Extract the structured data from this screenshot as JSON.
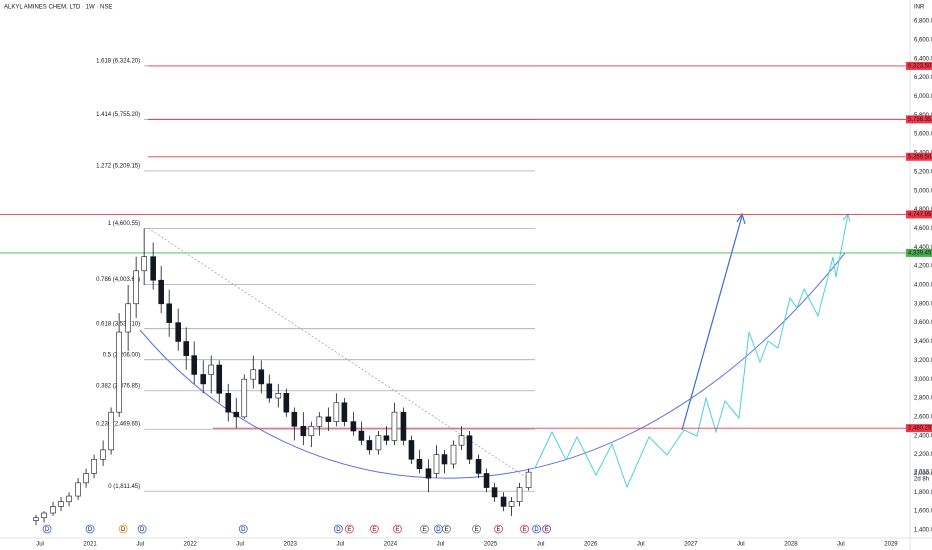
{
  "header": {
    "title": "ALKYL AMINES CHEM, LTD · 1W · NSE",
    "currency": "INR"
  },
  "chart_data": {
    "type": "candlestick",
    "x": [
      2020.46,
      2020.54,
      2020.63,
      2020.71,
      2020.79,
      2020.88,
      2020.96,
      2021.04,
      2021.13,
      2021.21,
      2021.29,
      2021.38,
      2021.46,
      2021.54,
      2021.63,
      2021.71,
      2021.79,
      2021.88,
      2021.96,
      2022.04,
      2022.13,
      2022.21,
      2022.29,
      2022.38,
      2022.46,
      2022.54,
      2022.63,
      2022.71,
      2022.79,
      2022.88,
      2022.96,
      2023.04,
      2023.13,
      2023.21,
      2023.29,
      2023.38,
      2023.46,
      2023.54,
      2023.63,
      2023.71,
      2023.79,
      2023.88,
      2023.96,
      2024.04,
      2024.13,
      2024.21,
      2024.29,
      2024.38,
      2024.46,
      2024.54,
      2024.63,
      2024.71,
      2024.79,
      2024.88,
      2024.96,
      2025.04,
      2025.13,
      2025.21,
      2025.29,
      2025.38
    ],
    "open": [
      1500,
      1530,
      1580,
      1650,
      1700,
      1760,
      1900,
      2000,
      2150,
      2250,
      2650,
      3500,
      3800,
      4150,
      4300,
      4050,
      3800,
      3600,
      3400,
      3250,
      3050,
      3050,
      3150,
      2850,
      2650,
      2600,
      3000,
      3100,
      2950,
      2800,
      2850,
      2650,
      2500,
      2400,
      2500,
      2600,
      2550,
      2750,
      2550,
      2450,
      2350,
      2250,
      2400,
      2350,
      2650,
      2350,
      2150,
      2050,
      2000,
      2200,
      2100,
      2300,
      2400,
      2150,
      2000,
      1850,
      1750,
      1650,
      1700,
      1850
    ],
    "high": [
      1560,
      1600,
      1700,
      1750,
      1800,
      1950,
      2050,
      2200,
      2350,
      2700,
      3700,
      4000,
      4300,
      4600,
      4450,
      4200,
      3950,
      3750,
      3550,
      3400,
      3200,
      3250,
      3200,
      2950,
      2800,
      3050,
      3250,
      3200,
      3050,
      2950,
      2900,
      2700,
      2650,
      2550,
      2650,
      2700,
      2850,
      2800,
      2650,
      2550,
      2400,
      2450,
      2500,
      2750,
      2700,
      2400,
      2250,
      2150,
      2300,
      2250,
      2350,
      2500,
      2450,
      2200,
      2050,
      1900,
      1800,
      1750,
      1900,
      2050
    ],
    "low": [
      1450,
      1480,
      1550,
      1600,
      1650,
      1720,
      1850,
      1950,
      2080,
      2200,
      2600,
      3300,
      3650,
      4000,
      3950,
      3700,
      3450,
      3300,
      3100,
      2950,
      2850,
      2850,
      2750,
      2550,
      2480,
      2580,
      2900,
      2850,
      2750,
      2700,
      2600,
      2350,
      2300,
      2280,
      2400,
      2450,
      2500,
      2500,
      2400,
      2300,
      2200,
      2200,
      2300,
      2300,
      2300,
      2100,
      2000,
      1800,
      1950,
      2000,
      2050,
      2250,
      2100,
      1950,
      1800,
      1700,
      1600,
      1550,
      1650,
      1820
    ],
    "close": [
      1530,
      1580,
      1650,
      1700,
      1760,
      1900,
      2000,
      2150,
      2250,
      2650,
      3500,
      3800,
      4150,
      4300,
      4050,
      3800,
      3600,
      3400,
      3250,
      3050,
      2950,
      3150,
      2850,
      2650,
      2600,
      3000,
      3100,
      2950,
      2800,
      2850,
      2650,
      2500,
      2400,
      2500,
      2600,
      2550,
      2750,
      2550,
      2450,
      2350,
      2250,
      2400,
      2350,
      2650,
      2350,
      2150,
      2050,
      1950,
      2200,
      2100,
      2300,
      2400,
      2150,
      2000,
      1850,
      1750,
      1650,
      1700,
      1850,
      2013.7
    ],
    "up_color": "#ffffff",
    "down_color": "#131722",
    "xlim": [
      2020.1,
      2029.19
    ],
    "ylim": [
      1315,
      7023
    ],
    "xticks": [
      {
        "value": 2020.5,
        "label": "Jul"
      },
      {
        "value": 2021,
        "label": "2021"
      },
      {
        "value": 2021.5,
        "label": "Jul"
      },
      {
        "value": 2022,
        "label": "2022"
      },
      {
        "value": 2022.5,
        "label": "Jul"
      },
      {
        "value": 2023,
        "label": "2023"
      },
      {
        "value": 2023.5,
        "label": "Jul"
      },
      {
        "value": 2024,
        "label": "2024"
      },
      {
        "value": 2024.5,
        "label": "Jul"
      },
      {
        "value": 2025,
        "label": "2025"
      },
      {
        "value": 2025.5,
        "label": "Jul"
      },
      {
        "value": 2026,
        "label": "2026"
      },
      {
        "value": 2026.5,
        "label": "Jul"
      },
      {
        "value": 2027,
        "label": "2027"
      },
      {
        "value": 2027.5,
        "label": "Jul"
      },
      {
        "value": 2028,
        "label": "2028"
      },
      {
        "value": 2028.5,
        "label": "Jul"
      },
      {
        "value": 2029,
        "label": "2029"
      }
    ],
    "yticks": [
      {
        "value": 1400,
        "label": "1,400.00"
      },
      {
        "value": 1600,
        "label": "1,600.00"
      },
      {
        "value": 1800,
        "label": "1,800.00"
      },
      {
        "value": 2000,
        "label": "2,000.00"
      },
      {
        "value": 2200,
        "label": "2,200.00"
      },
      {
        "value": 2400,
        "label": "2,400.00"
      },
      {
        "value": 2600,
        "label": "2,600.00"
      },
      {
        "value": 2800,
        "label": "2,800.00"
      },
      {
        "value": 3000,
        "label": "3,000.00"
      },
      {
        "value": 3200,
        "label": "3,200.00"
      },
      {
        "value": 3400,
        "label": "3,400.00"
      },
      {
        "value": 3600,
        "label": "3,600.00"
      },
      {
        "value": 3800,
        "label": "3,800.00"
      },
      {
        "value": 4000,
        "label": "4,000.00"
      },
      {
        "value": 4200,
        "label": "4,200.00"
      },
      {
        "value": 4400,
        "label": "4,400.00"
      },
      {
        "value": 4600,
        "label": "4,600.00"
      },
      {
        "value": 4800,
        "label": "4,800.00"
      },
      {
        "value": 5000,
        "label": "5,000.00"
      },
      {
        "value": 5200,
        "label": "5,200.00"
      },
      {
        "value": 5400,
        "label": "5,400.00"
      },
      {
        "value": 5600,
        "label": "5,600.00"
      },
      {
        "value": 5800,
        "label": "5,800.00"
      },
      {
        "value": 6000,
        "label": "6,000.00"
      },
      {
        "value": 6200,
        "label": "6,200.00"
      },
      {
        "value": 6400,
        "label": "6,400.00"
      },
      {
        "value": 6600,
        "label": "6,600.00"
      },
      {
        "value": 6800,
        "label": "6,800.00"
      }
    ],
    "fib_levels": [
      {
        "label": "1.618 (6,324.20)",
        "value": 6324.2,
        "color": "#131722"
      },
      {
        "label": "1.414 (5,755.20)",
        "value": 5755.2,
        "color": "#f23645"
      },
      {
        "label": "1.272 (5,209.15)",
        "value": 5209.15,
        "color": "#4caf50"
      },
      {
        "label": "1 (4,600.55)",
        "value": 4600.55,
        "color": "#131722"
      },
      {
        "label": "0.786 (4,003.65)",
        "value": 4003.65,
        "color": "#131722"
      },
      {
        "label": "0.618 (3,535.10)",
        "value": 3535.1,
        "color": "#131722"
      },
      {
        "label": "0.5 (3,206.00)",
        "value": 3206,
        "color": "#131722"
      },
      {
        "label": "0.382 (2,876.85)",
        "value": 2876.85,
        "color": "#131722"
      },
      {
        "label": "0.236 (2,469.65)",
        "value": 2469.65,
        "color": "#131722"
      },
      {
        "label": "0 (1,811.45)",
        "value": 1811.45,
        "color": "#131722"
      }
    ],
    "price_lines": [
      {
        "value": 6323.5,
        "label": "6,323.50",
        "color": "#f23645"
      },
      {
        "value": 5756.35,
        "label": "5,756.35",
        "color": "#f23645"
      },
      {
        "value": 5359.5,
        "label": "5,359.50",
        "color": "#f23645"
      },
      {
        "value": 4747.95,
        "label": "4,747.95",
        "color": "#f23645"
      },
      {
        "value": 4339.45,
        "label": "4,339.45",
        "color": "#4caf50"
      },
      {
        "value": 2480.25,
        "label": "2,480.25",
        "color": "#f23645"
      }
    ],
    "last_price": {
      "value": 2013.7,
      "label": "2,013.70",
      "countdown": "2d 8h"
    },
    "events": [
      {
        "label": "D",
        "x": 2020.57,
        "color": "#2962ff"
      },
      {
        "label": "D",
        "x": 2021.0,
        "color": "#2962ff"
      },
      {
        "label": "D",
        "x": 2021.33,
        "color": "#ff9800"
      },
      {
        "label": "D",
        "x": 2021.52,
        "color": "#2962ff"
      },
      {
        "label": "D",
        "x": 2022.53,
        "color": "#2962ff"
      },
      {
        "label": "D",
        "x": 2023.48,
        "color": "#2962ff"
      },
      {
        "label": "E",
        "x": 2023.59,
        "color": "#f23645"
      },
      {
        "label": "E",
        "x": 2023.84,
        "color": "#f23645"
      },
      {
        "label": "E",
        "x": 2024.07,
        "color": "#f23645"
      },
      {
        "label": "E",
        "x": 2024.34,
        "color": "#787b86"
      },
      {
        "label": "D",
        "x": 2024.48,
        "color": "#2962ff"
      },
      {
        "label": "E",
        "x": 2024.56,
        "color": "#787b86"
      },
      {
        "label": "E",
        "x": 2024.86,
        "color": "#787b86"
      },
      {
        "label": "E",
        "x": 2025.08,
        "color": "#f23645"
      },
      {
        "label": "E",
        "x": 2025.34,
        "color": "#f23645"
      },
      {
        "label": "D",
        "x": 2025.46,
        "color": "#2962ff"
      },
      {
        "label": "E",
        "x": 2025.56,
        "color": "#9c27b0"
      }
    ]
  }
}
